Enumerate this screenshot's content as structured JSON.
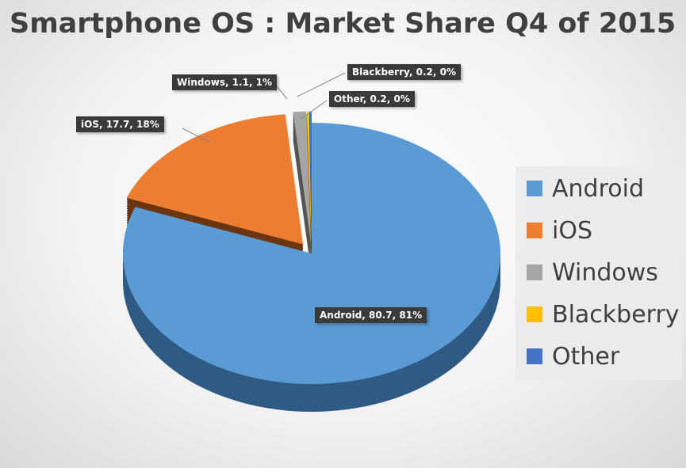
{
  "title": "Smartphone OS : Market Share Q4 of 2015",
  "chart_data": {
    "type": "pie",
    "title": "Smartphone OS : Market Share Q4 of 2015",
    "categories": [
      "Android",
      "iOS",
      "Windows",
      "Blackberry",
      "Other"
    ],
    "values": [
      80.7,
      17.7,
      1.1,
      0.2,
      0.2
    ],
    "colors": [
      "#5b9bd5",
      "#ed7d31",
      "#a5a5a5",
      "#ffc000",
      "#4472c4"
    ],
    "side_colors": [
      "#2e5a84",
      "#6b3510",
      "#555555",
      "#8a6a00",
      "#22406e"
    ],
    "data_labels": [
      "Android, 80.7, 81%",
      "iOS, 17.7, 18%",
      "Windows, 1.1, 1%",
      "Blackberry, 0.2, 0%",
      "Other, 0.2, 0%"
    ],
    "legend_position": "right",
    "exploded": [
      false,
      true,
      true,
      true,
      true
    ]
  }
}
